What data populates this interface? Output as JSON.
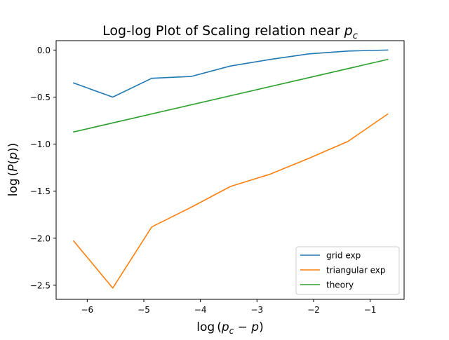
{
  "chart_data": {
    "type": "line",
    "title": "Log-log Plot of Scaling relation near p_c",
    "title_parts": {
      "main": "Log-log Plot of Scaling relation near ",
      "sym": "p",
      "sub": "c"
    },
    "xlabel": "log(p_c − p)",
    "xlabel_parts": {
      "fn": "log",
      "open": "(",
      "sym": "p",
      "sub": "c",
      "rest": " − ",
      "sym2": "p",
      "close": ")"
    },
    "ylabel": "log(P(p))",
    "ylabel_parts": {
      "fn": "log",
      "open": "(",
      "sym": "P",
      "open2": "(",
      "sym2": "p",
      "close": "))"
    },
    "xlim": [
      -6.55,
      -0.4
    ],
    "ylim": [
      -2.65,
      0.1
    ],
    "x_ticks": [
      -6,
      -5,
      -4,
      -3,
      -2,
      -1
    ],
    "x_tick_labels": [
      "−6",
      "−5",
      "−4",
      "−3",
      "−2",
      "−1"
    ],
    "y_ticks": [
      0.0,
      -0.5,
      -1.0,
      -1.5,
      -2.0,
      -2.5
    ],
    "y_tick_labels": [
      "0.0",
      "−0.5",
      "−1.0",
      "−1.5",
      "−2.0",
      "−2.5"
    ],
    "grid": false,
    "legend_position": "lower-right",
    "series": [
      {
        "name": "grid exp",
        "color": "#1f77b4",
        "x": [
          -6.24,
          -5.55,
          -4.86,
          -4.16,
          -3.47,
          -2.77,
          -2.08,
          -1.39,
          -0.69
        ],
        "y": [
          -0.35,
          -0.5,
          -0.3,
          -0.28,
          -0.17,
          -0.1,
          -0.04,
          -0.01,
          0.0
        ]
      },
      {
        "name": "triangular exp",
        "color": "#ff7f0e",
        "x": [
          -6.24,
          -5.55,
          -4.86,
          -4.16,
          -3.47,
          -2.77,
          -2.08,
          -1.39,
          -0.69
        ],
        "y": [
          -2.03,
          -2.53,
          -1.88,
          -1.67,
          -1.45,
          -1.32,
          -1.15,
          -0.97,
          -0.68
        ]
      },
      {
        "name": "theory",
        "color": "#2ca02c",
        "x": [
          -6.24,
          -0.69
        ],
        "y": [
          -0.87,
          -0.1
        ]
      }
    ]
  }
}
